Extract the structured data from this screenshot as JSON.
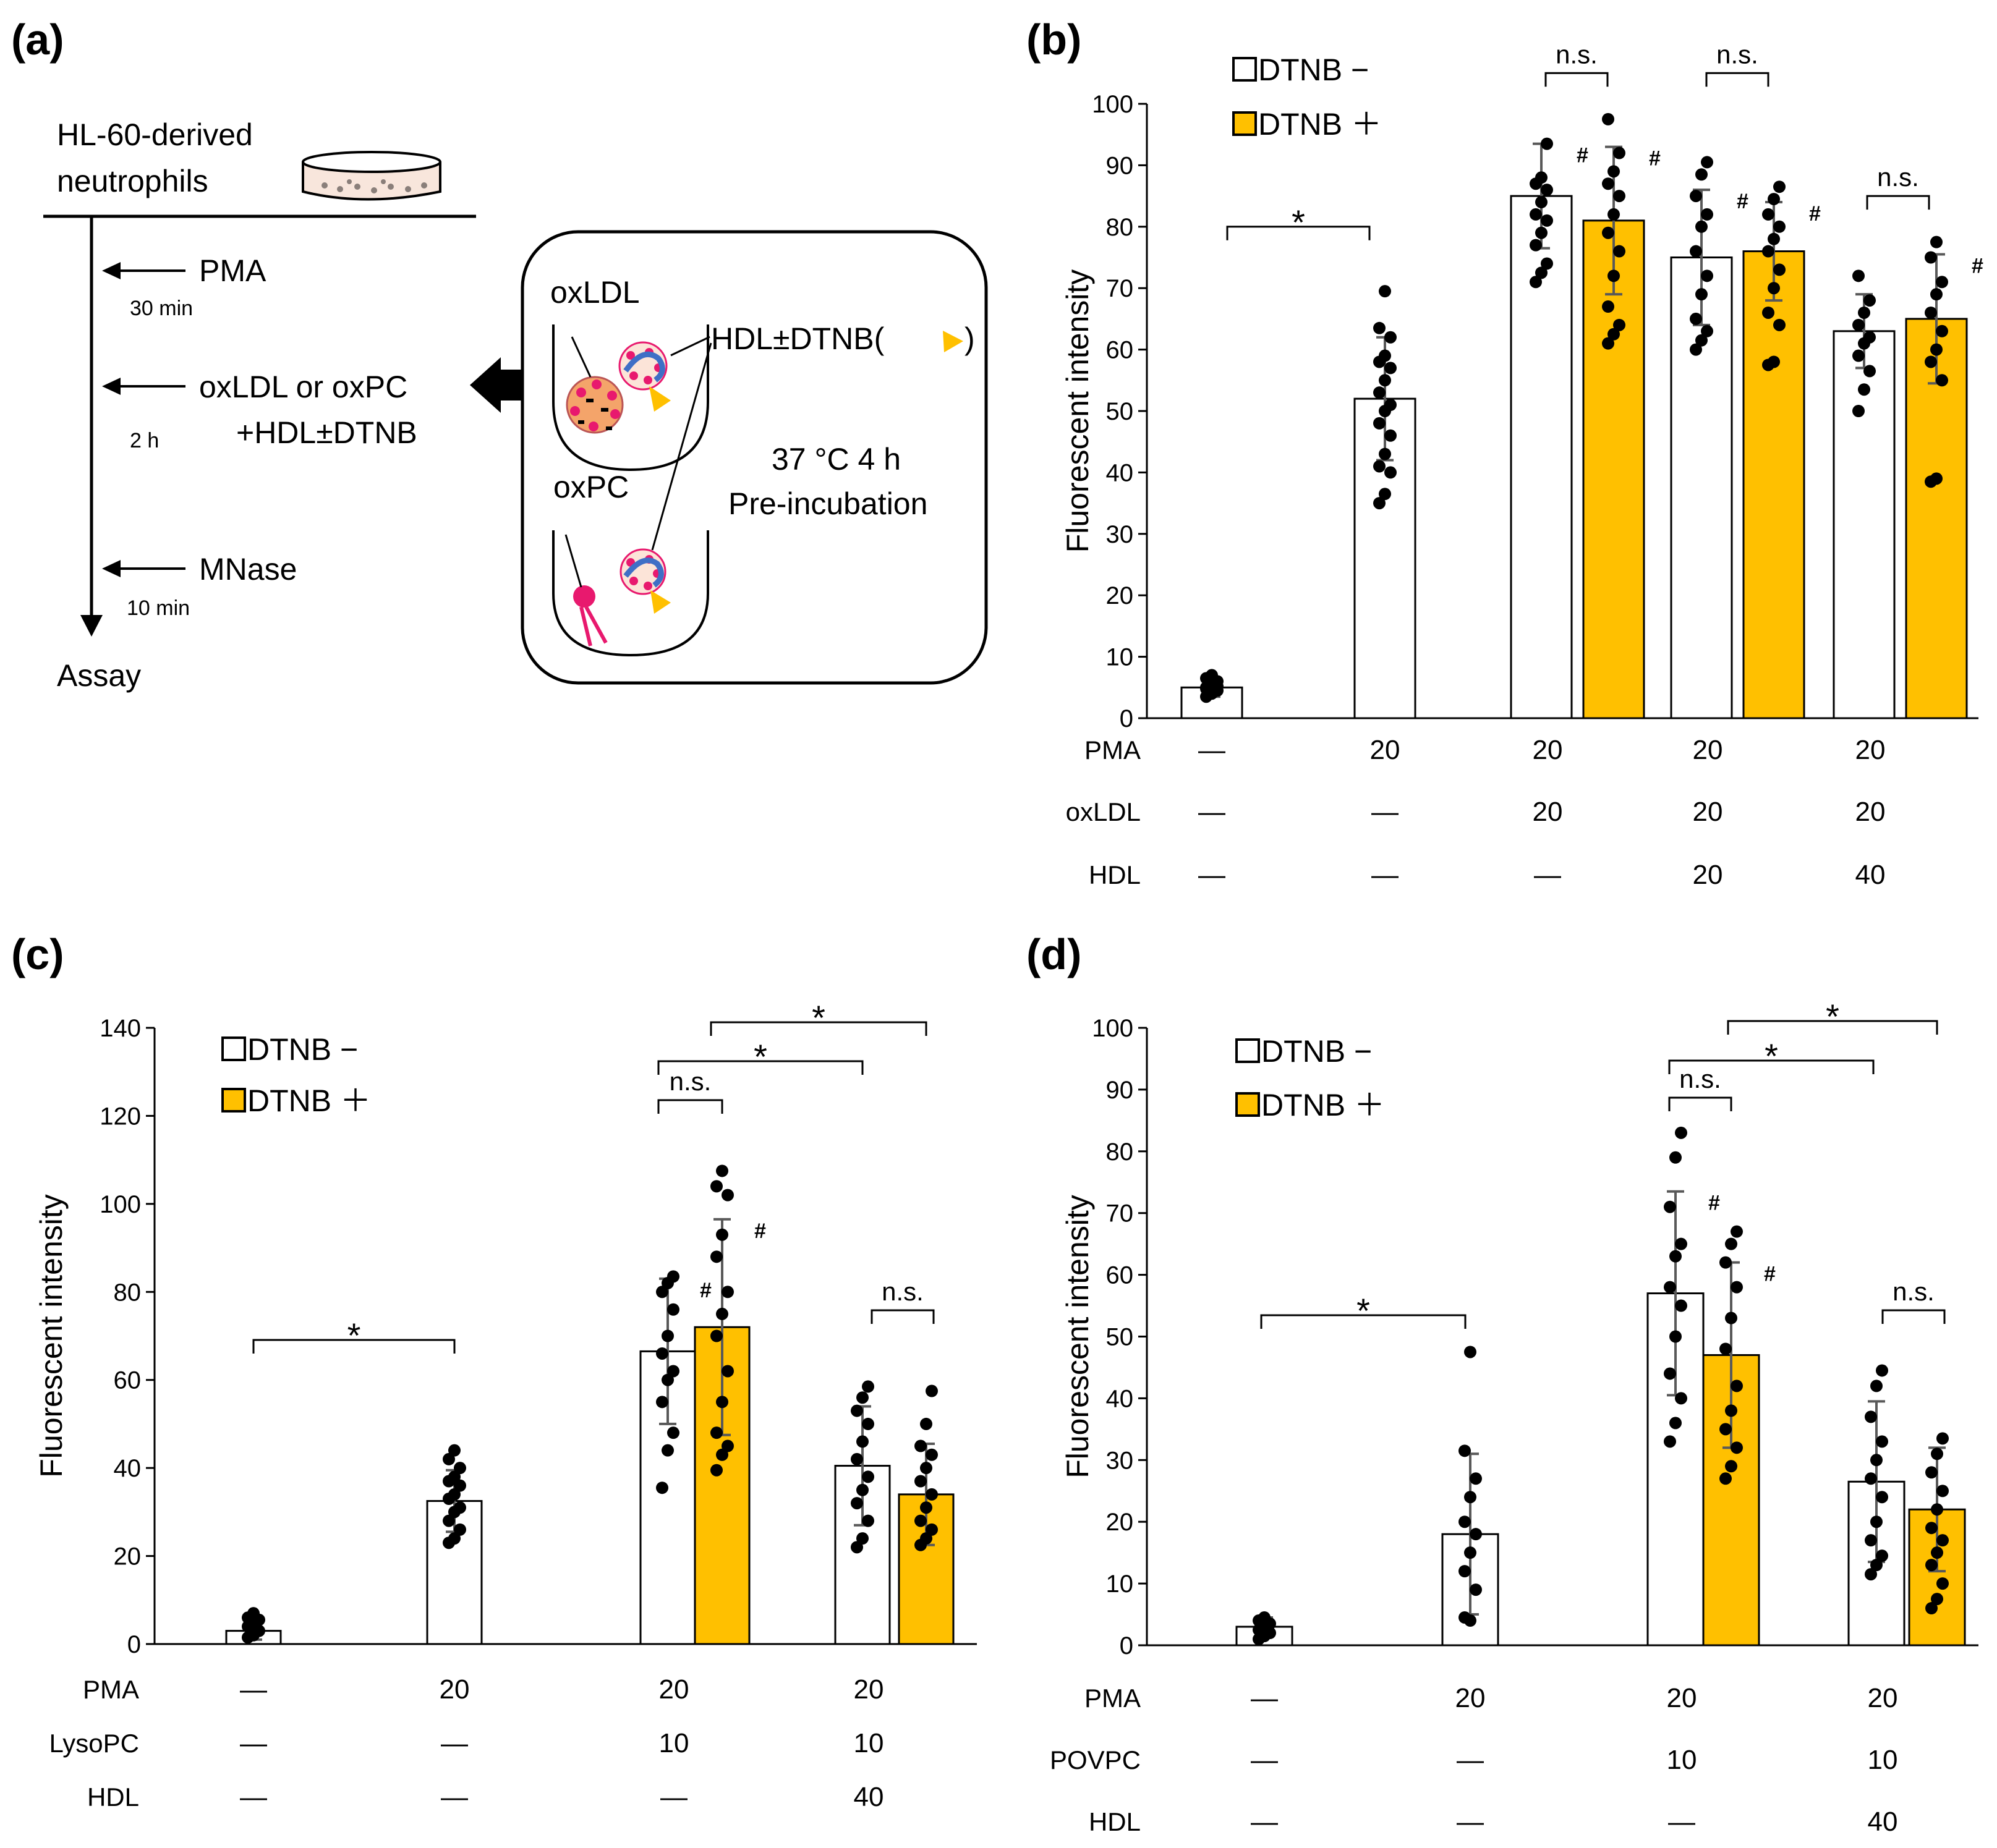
{
  "panels": {
    "a": "(a)",
    "b": "(b)",
    "c": "(c)",
    "d": "(d)"
  },
  "schematic": {
    "cells_label_line1": "HL-60-derived",
    "cells_label_line2": "neutrophils",
    "step1": "PMA",
    "step1_time": "30 min",
    "step2": "oxLDL or oxPC",
    "step2b": "+HDL±DTNB",
    "step2_time": "2 h",
    "step3": "MNase",
    "step3_time": "10 min",
    "end": "Assay",
    "box_tube1": "oxLDL",
    "box_tube2": "oxPC",
    "box_hdl": "HDL±DTNB(",
    "box_hdl_close": ")",
    "box_condition1": "37 °C 4 h",
    "box_condition2": "Pre-incubation"
  },
  "colors": {
    "dtnb_plus": "#FFC000",
    "dtnb_minus": "#FFFFFF",
    "errorbar": "#595959",
    "pink": "#E8196E",
    "orange": "#F7A35C",
    "blue": "#3F6FC6"
  },
  "chart_data": [
    {
      "id": "b",
      "type": "bar",
      "ylabel": "Fluorescent intensity",
      "ylim": [
        0,
        100
      ],
      "yticks": [
        0,
        10,
        20,
        30,
        40,
        50,
        60,
        70,
        80,
        90,
        100
      ],
      "legend": [
        "DTNB −",
        "DTNB ＋"
      ],
      "bars": [
        {
          "group": 0,
          "dtnb": "-",
          "value": 5,
          "err": 1.5,
          "points": [
            3.5,
            4,
            4.5,
            5,
            5.5,
            6,
            6.5,
            7,
            5.2,
            4.8
          ]
        },
        {
          "group": 1,
          "dtnb": "-",
          "value": 52,
          "err": 10,
          "points": [
            35,
            36.5,
            40,
            41,
            43,
            46,
            48,
            50,
            51,
            53,
            55,
            57,
            58,
            59,
            62,
            63.5,
            69.5
          ]
        },
        {
          "group": 2,
          "dtnb": "-",
          "value": 85,
          "err": 8.5,
          "points": [
            71,
            72.5,
            74,
            77,
            79,
            81,
            82,
            84,
            86,
            87,
            88,
            93.5
          ],
          "hash": "#"
        },
        {
          "group": 2,
          "dtnb": "+",
          "value": 81,
          "err": 12,
          "points": [
            61,
            62.5,
            64,
            67,
            72,
            76,
            79,
            82,
            85,
            87,
            89,
            92,
            97.5
          ],
          "hash": "#"
        },
        {
          "group": 3,
          "dtnb": "-",
          "value": 75,
          "err": 11,
          "points": [
            60,
            61.5,
            63,
            65,
            69,
            72,
            76,
            80,
            82,
            85,
            88.5,
            90.5
          ],
          "hash": "#"
        },
        {
          "group": 3,
          "dtnb": "+",
          "value": 76,
          "err": 8,
          "points": [
            57.5,
            58,
            64,
            66,
            70,
            73,
            76,
            78,
            80,
            82,
            84.5,
            86.5
          ],
          "hash": "#"
        },
        {
          "group": 4,
          "dtnb": "-",
          "value": 63,
          "err": 6,
          "points": [
            50,
            53.5,
            56.5,
            59,
            61,
            62,
            64,
            66,
            68,
            72
          ]
        },
        {
          "group": 4,
          "dtnb": "+",
          "value": 65,
          "err": 10.5,
          "points": [
            38.5,
            39,
            55,
            58,
            60,
            63,
            66,
            69,
            71,
            75,
            77.5
          ],
          "hash": "#"
        }
      ],
      "rows": [
        {
          "label": "PMA",
          "values": [
            "—",
            "20",
            "20",
            "20",
            "20"
          ]
        },
        {
          "label": "oxLDL",
          "values": [
            "—",
            "—",
            "20",
            "20",
            "20"
          ]
        },
        {
          "label": "HDL",
          "values": [
            "—",
            "—",
            "—",
            "20",
            "40"
          ]
        }
      ],
      "brackets": [
        {
          "from": "g0",
          "to": "g1",
          "y": 80,
          "text": "*"
        },
        {
          "from": "g2a",
          "to": "g2b",
          "y": 105,
          "text": "n.s."
        },
        {
          "from": "g3a",
          "to": "g3b",
          "y": 105,
          "text": "n.s."
        },
        {
          "from": "g4a",
          "to": "g4b",
          "y": 85,
          "text": "n.s."
        }
      ]
    },
    {
      "id": "c",
      "type": "bar",
      "ylabel": "Fluorescent intensity",
      "ylim": [
        0,
        140
      ],
      "yticks": [
        0,
        20,
        40,
        60,
        80,
        100,
        120,
        140
      ],
      "legend": [
        "DTNB −",
        "DTNB ＋"
      ],
      "bars": [
        {
          "group": 0,
          "dtnb": "-",
          "value": 3,
          "err": 2,
          "points": [
            1.5,
            2,
            3,
            4,
            5,
            5.5,
            6,
            7
          ]
        },
        {
          "group": 1,
          "dtnb": "-",
          "value": 32.5,
          "err": 7,
          "points": [
            23,
            24,
            26,
            28,
            30,
            31,
            33,
            34,
            36,
            37,
            38,
            40,
            42,
            44
          ]
        },
        {
          "group": 2,
          "dtnb": "-",
          "value": 66.5,
          "err": 16.5,
          "points": [
            35.5,
            44,
            48,
            55,
            60,
            62,
            66,
            70,
            76,
            80,
            82,
            83.5
          ],
          "hash": "#"
        },
        {
          "group": 2,
          "dtnb": "+",
          "value": 72,
          "err": 24.5,
          "points": [
            39.5,
            43,
            45,
            48,
            55,
            62,
            70,
            75,
            80,
            88,
            93,
            102,
            104,
            107.5
          ],
          "hash": "#"
        },
        {
          "group": 3,
          "dtnb": "-",
          "value": 40.5,
          "err": 13.5,
          "points": [
            22,
            24,
            28,
            32,
            35,
            38,
            42,
            46,
            50,
            53,
            56,
            58.5
          ]
        },
        {
          "group": 3,
          "dtnb": "+",
          "value": 34,
          "err": 11.5,
          "points": [
            22.5,
            24,
            26,
            28,
            31,
            34,
            37,
            40,
            43,
            45,
            50,
            57.5
          ]
        }
      ],
      "rows": [
        {
          "label": "PMA",
          "values": [
            "—",
            "20",
            "20",
            "20"
          ]
        },
        {
          "label": "LysoPC",
          "values": [
            "—",
            "—",
            "10",
            "10"
          ]
        },
        {
          "label": "HDL",
          "values": [
            "—",
            "—",
            "—",
            "40"
          ]
        }
      ],
      "brackets": [
        {
          "text": "*"
        },
        {
          "text": "n.s."
        },
        {
          "text": "*"
        },
        {
          "text": "*"
        },
        {
          "text": "n.s."
        }
      ]
    },
    {
      "id": "d",
      "type": "bar",
      "ylabel": "Fluorescent intensity",
      "ylim": [
        0,
        100
      ],
      "yticks": [
        0,
        10,
        20,
        30,
        40,
        50,
        60,
        70,
        80,
        90,
        100
      ],
      "legend": [
        "DTNB −",
        "DTNB ＋"
      ],
      "bars": [
        {
          "group": 0,
          "dtnb": "-",
          "value": 3,
          "err": 1.5,
          "points": [
            1,
            1.5,
            2,
            2.5,
            3,
            3.5,
            4,
            4.5
          ]
        },
        {
          "group": 1,
          "dtnb": "-",
          "value": 18,
          "err": 13,
          "points": [
            4.5,
            4,
            9,
            12,
            15,
            18,
            20,
            24,
            27,
            31.5,
            47.5
          ]
        },
        {
          "group": 2,
          "dtnb": "-",
          "value": 57,
          "err": 16.5,
          "points": [
            33,
            36,
            40,
            44,
            50,
            55,
            58,
            63,
            65,
            71,
            79,
            83
          ],
          "hash": "#"
        },
        {
          "group": 2,
          "dtnb": "+",
          "value": 47,
          "err": 15,
          "points": [
            27,
            29,
            32,
            35,
            38,
            42,
            48,
            53,
            58,
            62,
            65,
            67
          ],
          "hash": "#"
        },
        {
          "group": 3,
          "dtnb": "-",
          "value": 26.5,
          "err": 13,
          "points": [
            11.5,
            13,
            14.5,
            17,
            20,
            24,
            27,
            30,
            33,
            37,
            42,
            44.5
          ]
        },
        {
          "group": 3,
          "dtnb": "+",
          "value": 22,
          "err": 10,
          "points": [
            6,
            7.5,
            10,
            13,
            15,
            17,
            19,
            22,
            25,
            28,
            31,
            33.5
          ]
        }
      ],
      "rows": [
        {
          "label": "PMA",
          "values": [
            "—",
            "20",
            "20",
            "20"
          ]
        },
        {
          "label": "POVPC",
          "values": [
            "—",
            "—",
            "10",
            "10"
          ]
        },
        {
          "label": "HDL",
          "values": [
            "—",
            "—",
            "—",
            "40"
          ]
        }
      ],
      "brackets": [
        {
          "text": "*"
        },
        {
          "text": "n.s."
        },
        {
          "text": "*"
        },
        {
          "text": "*"
        },
        {
          "text": "n.s."
        }
      ]
    }
  ]
}
